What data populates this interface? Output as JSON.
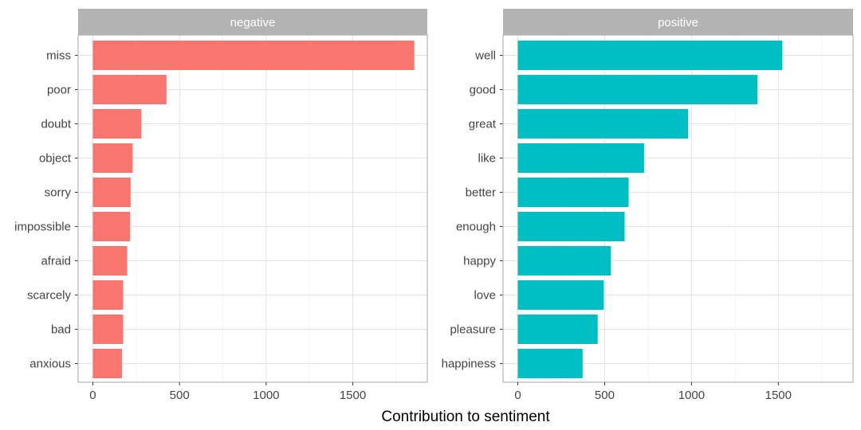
{
  "chart_data": {
    "type": "bar",
    "orientation": "horizontal",
    "xlabel": "Contribution to sentiment",
    "xlim": [
      -85,
      1930
    ],
    "x_ticks": [
      0,
      500,
      1000,
      1500
    ],
    "grid": true,
    "panels": [
      {
        "strip_label": "negative",
        "color": "#F8766D",
        "categories": [
          "miss",
          "poor",
          "doubt",
          "object",
          "sorry",
          "impossible",
          "afraid",
          "scarcely",
          "bad",
          "anxious"
        ],
        "values": [
          1855,
          425,
          280,
          230,
          218,
          215,
          198,
          175,
          175,
          168
        ]
      },
      {
        "strip_label": "positive",
        "color": "#00BFC4",
        "categories": [
          "well",
          "good",
          "great",
          "like",
          "better",
          "enough",
          "happy",
          "love",
          "pleasure",
          "happiness"
        ],
        "values": [
          1523,
          1380,
          980,
          727,
          638,
          615,
          536,
          495,
          460,
          373
        ]
      }
    ]
  }
}
